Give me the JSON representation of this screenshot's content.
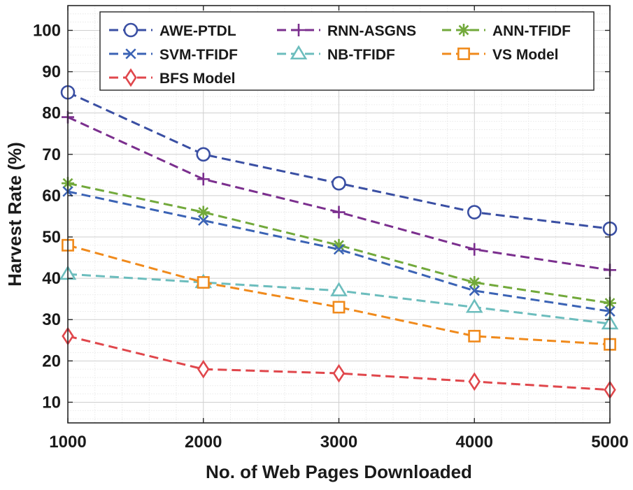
{
  "chart_data": {
    "type": "line",
    "title": "",
    "xlabel": "No. of Web Pages Downloaded",
    "ylabel": "Harvest Rate (%)",
    "x": [
      1000,
      2000,
      3000,
      4000,
      5000
    ],
    "xlim": [
      1000,
      5000
    ],
    "ylim": [
      5,
      106
    ],
    "xticks": [
      1000,
      2000,
      3000,
      4000,
      5000
    ],
    "yticks": [
      10,
      20,
      30,
      40,
      50,
      60,
      70,
      80,
      90,
      100
    ],
    "grid": true,
    "minor_grid": true,
    "legend_position": "top",
    "series": [
      {
        "name": "AWE-PTDL",
        "values": [
          85,
          70,
          63,
          56,
          52
        ],
        "color": "#3a4fa3",
        "marker": "circle"
      },
      {
        "name": "RNN-ASGNS",
        "values": [
          79,
          64,
          56,
          47,
          42
        ],
        "color": "#7b2f8e",
        "marker": "plus"
      },
      {
        "name": "ANN-TFIDF",
        "values": [
          63,
          56,
          48,
          39,
          34
        ],
        "color": "#72a93b",
        "marker": "asterisk"
      },
      {
        "name": "SVM-TFIDF",
        "values": [
          61,
          54,
          47,
          37,
          32
        ],
        "color": "#3b63b5",
        "marker": "x"
      },
      {
        "name": "NB-TFIDF",
        "values": [
          41,
          39,
          37,
          33,
          29
        ],
        "color": "#6cbdbd",
        "marker": "triangle"
      },
      {
        "name": "VS Model",
        "values": [
          48,
          39,
          33,
          26,
          24
        ],
        "color": "#f08a1c",
        "marker": "square"
      },
      {
        "name": "BFS Model",
        "values": [
          26,
          18,
          17,
          15,
          13
        ],
        "color": "#e0474c",
        "marker": "diamond"
      }
    ]
  }
}
